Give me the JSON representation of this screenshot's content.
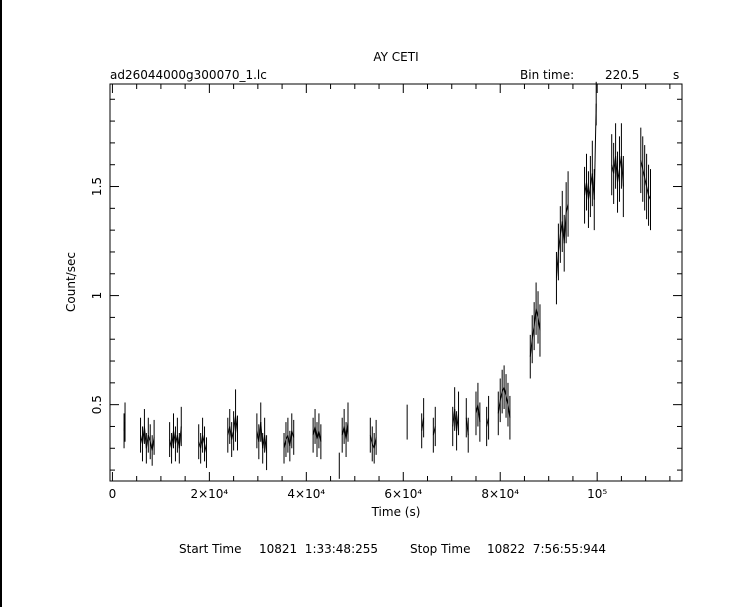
{
  "chart_data": {
    "type": "scatter",
    "title": "AY CETI",
    "subtitle_left": "ad26044000g300070_1.lc",
    "bin_time_label": "Bin time:",
    "bin_time_value": "220.5",
    "bin_time_unit": "s",
    "xlabel": "Time (s)",
    "ylabel": "Count/sec",
    "xlim": [
      -500,
      117500
    ],
    "ylim": [
      0.15,
      1.97
    ],
    "grid": false,
    "x_ticks": [
      {
        "value": 0,
        "label": "0"
      },
      {
        "value": 20000,
        "label": "2×10⁴"
      },
      {
        "value": 40000,
        "label": "4×10⁴"
      },
      {
        "value": 60000,
        "label": "6×10⁴"
      },
      {
        "value": 80000,
        "label": "8×10⁴"
      },
      {
        "value": 100000,
        "label": "10⁵"
      }
    ],
    "y_ticks": [
      {
        "value": 0.5,
        "label": "0.5"
      },
      {
        "value": 1.0,
        "label": "1"
      },
      {
        "value": 1.5,
        "label": "1.5"
      }
    ],
    "series": [
      {
        "points": [
          [
            2400,
            0.38,
            0.08
          ],
          [
            2600,
            0.42,
            0.09
          ],
          [
            5800,
            0.36,
            0.08
          ],
          [
            6200,
            0.32,
            0.08
          ],
          [
            6600,
            0.4,
            0.08
          ],
          [
            7000,
            0.3,
            0.07
          ],
          [
            7400,
            0.36,
            0.08
          ],
          [
            7800,
            0.33,
            0.08
          ],
          [
            8200,
            0.29,
            0.07
          ],
          [
            8600,
            0.35,
            0.08
          ],
          [
            11800,
            0.34,
            0.08
          ],
          [
            12200,
            0.3,
            0.07
          ],
          [
            12600,
            0.38,
            0.08
          ],
          [
            13000,
            0.32,
            0.08
          ],
          [
            13400,
            0.36,
            0.08
          ],
          [
            13800,
            0.3,
            0.07
          ],
          [
            14200,
            0.4,
            0.09
          ],
          [
            17800,
            0.33,
            0.08
          ],
          [
            18200,
            0.3,
            0.07
          ],
          [
            18600,
            0.36,
            0.08
          ],
          [
            19000,
            0.32,
            0.08
          ],
          [
            19400,
            0.28,
            0.07
          ],
          [
            23800,
            0.36,
            0.08
          ],
          [
            24200,
            0.4,
            0.08
          ],
          [
            24600,
            0.34,
            0.08
          ],
          [
            25000,
            0.38,
            0.09
          ],
          [
            25400,
            0.45,
            0.12
          ],
          [
            25800,
            0.37,
            0.08
          ],
          [
            29800,
            0.38,
            0.08
          ],
          [
            30200,
            0.33,
            0.08
          ],
          [
            30600,
            0.42,
            0.09
          ],
          [
            31000,
            0.3,
            0.07
          ],
          [
            31400,
            0.36,
            0.08
          ],
          [
            31800,
            0.28,
            0.08
          ],
          [
            35400,
            0.3,
            0.07
          ],
          [
            35800,
            0.34,
            0.08
          ],
          [
            36200,
            0.36,
            0.08
          ],
          [
            36600,
            0.31,
            0.07
          ],
          [
            37000,
            0.38,
            0.08
          ],
          [
            37400,
            0.35,
            0.08
          ],
          [
            41400,
            0.36,
            0.08
          ],
          [
            41800,
            0.4,
            0.08
          ],
          [
            42200,
            0.34,
            0.08
          ],
          [
            42600,
            0.38,
            0.08
          ],
          [
            43000,
            0.33,
            0.08
          ],
          [
            46800,
            0.22,
            0.06
          ],
          [
            47400,
            0.36,
            0.08
          ],
          [
            47800,
            0.4,
            0.08
          ],
          [
            48200,
            0.34,
            0.08
          ],
          [
            48600,
            0.42,
            0.09
          ],
          [
            53200,
            0.36,
            0.08
          ],
          [
            53600,
            0.32,
            0.08
          ],
          [
            54000,
            0.3,
            0.07
          ],
          [
            54400,
            0.35,
            0.08
          ],
          [
            60800,
            0.42,
            0.08
          ],
          [
            63800,
            0.38,
            0.08
          ],
          [
            64200,
            0.44,
            0.09
          ],
          [
            66200,
            0.36,
            0.08
          ],
          [
            66600,
            0.4,
            0.09
          ],
          [
            70200,
            0.4,
            0.09
          ],
          [
            70600,
            0.48,
            0.1
          ],
          [
            71000,
            0.38,
            0.09
          ],
          [
            71400,
            0.46,
            0.1
          ],
          [
            73000,
            0.44,
            0.09
          ],
          [
            73400,
            0.36,
            0.08
          ],
          [
            75000,
            0.46,
            0.1
          ],
          [
            75400,
            0.5,
            0.1
          ],
          [
            75800,
            0.42,
            0.09
          ],
          [
            77200,
            0.4,
            0.09
          ],
          [
            77600,
            0.44,
            0.1
          ],
          [
            79600,
            0.46,
            0.1
          ],
          [
            80000,
            0.52,
            0.1
          ],
          [
            80400,
            0.56,
            0.1
          ],
          [
            80800,
            0.58,
            0.1
          ],
          [
            81200,
            0.54,
            0.1
          ],
          [
            81600,
            0.5,
            0.1
          ],
          [
            82000,
            0.44,
            0.1
          ],
          [
            86200,
            0.72,
            0.1
          ],
          [
            86600,
            0.8,
            0.11
          ],
          [
            87000,
            0.86,
            0.11
          ],
          [
            87400,
            0.94,
            0.12
          ],
          [
            87800,
            0.9,
            0.12
          ],
          [
            88200,
            0.84,
            0.12
          ],
          [
            91600,
            1.08,
            0.12
          ],
          [
            92000,
            1.2,
            0.13
          ],
          [
            92400,
            1.28,
            0.13
          ],
          [
            92800,
            1.34,
            0.14
          ],
          [
            93200,
            1.24,
            0.13
          ],
          [
            93600,
            1.38,
            0.14
          ],
          [
            94000,
            1.42,
            0.15
          ],
          [
            97400,
            1.46,
            0.13
          ],
          [
            97800,
            1.52,
            0.13
          ],
          [
            98200,
            1.44,
            0.13
          ],
          [
            98600,
            1.5,
            0.14
          ],
          [
            99000,
            1.56,
            0.15
          ],
          [
            99400,
            1.44,
            0.14
          ],
          [
            99800,
            1.88,
            0.1
          ],
          [
            103000,
            1.6,
            0.14
          ],
          [
            103400,
            1.56,
            0.14
          ],
          [
            103800,
            1.64,
            0.15
          ],
          [
            104200,
            1.52,
            0.14
          ],
          [
            104600,
            1.58,
            0.15
          ],
          [
            105000,
            1.64,
            0.15
          ],
          [
            105400,
            1.5,
            0.14
          ],
          [
            109000,
            1.62,
            0.15
          ],
          [
            109400,
            1.58,
            0.15
          ],
          [
            109800,
            1.54,
            0.15
          ],
          [
            110200,
            1.5,
            0.15
          ],
          [
            110600,
            1.46,
            0.14
          ],
          [
            111000,
            1.44,
            0.14
          ]
        ]
      }
    ]
  },
  "footer": {
    "start_label": "Start Time",
    "start_value": "10821  1:33:48:255",
    "stop_label": "Stop Time",
    "stop_value": "10822  7:56:55:944"
  }
}
